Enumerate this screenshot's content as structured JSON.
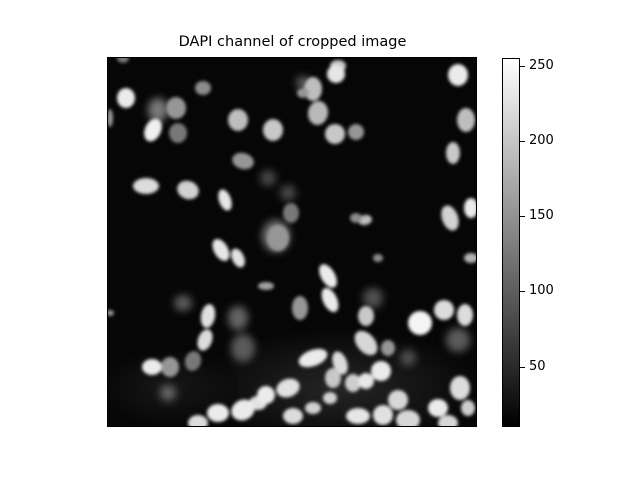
{
  "figure": {
    "title": "DAPI channel of cropped image"
  },
  "image": {
    "description_name": "fluorescent-nuclei-micrograph",
    "colormap": "gray",
    "background_color": "#050505"
  },
  "colorbar": {
    "min": 10,
    "max": 255,
    "ticks": [
      50,
      100,
      150,
      200,
      250
    ],
    "tick_labels": [
      "50",
      "100",
      "150",
      "200",
      "250"
    ]
  }
}
